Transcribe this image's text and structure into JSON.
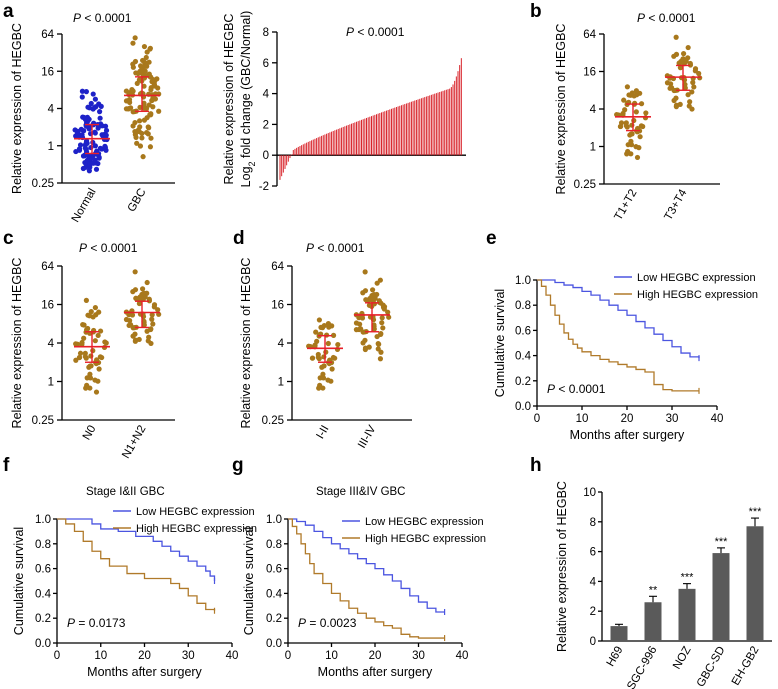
{
  "colors": {
    "blue": "#1e22c8",
    "gold": "#a8781c",
    "red": "#e8202a",
    "barred": "#d8232a",
    "bar_gray": "#5a5a5a",
    "km_blue": "#4b55e0",
    "km_brown": "#b07a2a"
  },
  "chart_data": [
    {
      "panel": "a",
      "type": "scatter",
      "subtype": "dot-plot",
      "p_text": {
        "p": "P",
        "rest": " < 0.0001"
      },
      "ylabel": "Relative expression of HEGBC",
      "yscale": "log2",
      "yticks": [
        "64",
        "16",
        "4",
        "1",
        "0.25"
      ],
      "ytick_values": [
        64,
        16,
        4,
        1,
        0.25
      ],
      "categories": [
        "Normal",
        "GBC"
      ],
      "series": [
        {
          "name": "Normal",
          "color": "blue",
          "n": 110,
          "median": 1.3,
          "q1": 0.75,
          "q3": 2.2,
          "min": 0.35,
          "max": 9
        },
        {
          "name": "GBC",
          "color": "gold",
          "n": 110,
          "median": 6.5,
          "q1": 3.6,
          "q3": 13,
          "min": 0.6,
          "max": 60
        }
      ]
    },
    {
      "panel": "a2",
      "type": "bar",
      "subtype": "waterfall",
      "p_text": {
        "p": "P",
        "rest": " < 0.0001"
      },
      "ylabel_line1": "Relative expression of HEGBC",
      "ylabel_line2": {
        "a": "Log",
        "sub": "2",
        "b": " fold change (GBC/Normal)"
      },
      "ylim": [
        -2,
        8
      ],
      "yticks": [
        "8",
        "6",
        "4",
        "2",
        "0",
        "-2"
      ],
      "ytick_values": [
        8,
        6,
        4,
        2,
        0,
        -2
      ],
      "n_bars": 110,
      "min_value": -1.6,
      "max_value": 6.3
    },
    {
      "panel": "b",
      "type": "scatter",
      "subtype": "dot-plot",
      "p_text": {
        "p": "P",
        "rest": " < 0.0001"
      },
      "ylabel": "Relative expression of HEGBC",
      "yscale": "log2",
      "yticks": [
        "64",
        "16",
        "4",
        "1",
        "0.25"
      ],
      "ytick_values": [
        64,
        16,
        4,
        1,
        0.25
      ],
      "categories": [
        "T1+T2",
        "T3+T4"
      ],
      "series": [
        {
          "name": "T1+T2",
          "color": "gold",
          "n": 50,
          "median": 3,
          "q1": 1.8,
          "q3": 4.8,
          "min": 0.5,
          "max": 10
        },
        {
          "name": "T3+T4",
          "color": "gold",
          "n": 50,
          "median": 13,
          "q1": 8,
          "q3": 20,
          "min": 2.3,
          "max": 60
        }
      ]
    },
    {
      "panel": "c",
      "type": "scatter",
      "subtype": "dot-plot",
      "p_text": {
        "p": "P",
        "rest": " < 0.0001"
      },
      "ylabel": "Relative expression of HEGBC",
      "yscale": "log2",
      "yticks": [
        "64",
        "16",
        "4",
        "1",
        "0.25"
      ],
      "ytick_values": [
        64,
        16,
        4,
        1,
        0.25
      ],
      "categories": [
        "N0",
        "N1+N2"
      ],
      "series": [
        {
          "name": "N0",
          "color": "gold",
          "n": 55,
          "median": 3.5,
          "q1": 2,
          "q3": 6,
          "min": 0.5,
          "max": 22
        },
        {
          "name": "N1+N2",
          "color": "gold",
          "n": 55,
          "median": 12,
          "q1": 7,
          "q3": 18,
          "min": 2.5,
          "max": 55
        }
      ]
    },
    {
      "panel": "d",
      "type": "scatter",
      "subtype": "dot-plot",
      "p_text": {
        "p": "P",
        "rest": " < 0.0001"
      },
      "ylabel": "Relative expression of HEGBC",
      "yscale": "log2",
      "yticks": [
        "64",
        "16",
        "4",
        "1",
        "0.25"
      ],
      "ytick_values": [
        64,
        16,
        4,
        1,
        0.25
      ],
      "categories": [
        "I-II",
        "III-IV"
      ],
      "series": [
        {
          "name": "I-II",
          "color": "gold",
          "n": 45,
          "median": 3.3,
          "q1": 2,
          "q3": 5.2,
          "min": 0.5,
          "max": 10
        },
        {
          "name": "III-IV",
          "color": "gold",
          "n": 65,
          "median": 11,
          "q1": 6,
          "q3": 17,
          "min": 1.6,
          "max": 55
        }
      ]
    },
    {
      "panel": "e",
      "type": "line",
      "subtype": "kaplan-meier",
      "ylabel": "Cumulative survival",
      "xlabel": "Months after surgery",
      "xlim": [
        0,
        40
      ],
      "ylim": [
        0,
        1
      ],
      "xticks": [
        "0",
        "10",
        "20",
        "30",
        "40"
      ],
      "xtick_values": [
        0,
        10,
        20,
        30,
        40
      ],
      "yticks": [
        "1.0",
        "0.8",
        "0.6",
        "0.4",
        "0.2",
        "0.0"
      ],
      "ytick_values": [
        1,
        0.8,
        0.6,
        0.4,
        0.2,
        0
      ],
      "p_text": {
        "p": "P",
        "rest": " < 0.0001"
      },
      "series": [
        {
          "name": "Low HEGBC expression",
          "color": "km_blue",
          "x": [
            0,
            2,
            4,
            6,
            8,
            10,
            12,
            14,
            16,
            18,
            20,
            22,
            24,
            26,
            28,
            30,
            32,
            34,
            36
          ],
          "y": [
            1.0,
            1.0,
            0.98,
            0.96,
            0.94,
            0.91,
            0.88,
            0.84,
            0.8,
            0.76,
            0.72,
            0.67,
            0.62,
            0.57,
            0.52,
            0.47,
            0.42,
            0.39,
            0.38
          ]
        },
        {
          "name": "High HEGBC expression",
          "color": "km_brown",
          "x": [
            0,
            1,
            2,
            3,
            4,
            5,
            6,
            7,
            8,
            9,
            10,
            12,
            14,
            16,
            18,
            20,
            22,
            24,
            26,
            28,
            30,
            36
          ],
          "y": [
            1.0,
            0.95,
            0.88,
            0.8,
            0.72,
            0.65,
            0.58,
            0.53,
            0.49,
            0.46,
            0.43,
            0.4,
            0.37,
            0.35,
            0.33,
            0.31,
            0.29,
            0.27,
            0.17,
            0.13,
            0.12,
            0.12
          ]
        }
      ]
    },
    {
      "panel": "f",
      "type": "line",
      "subtype": "kaplan-meier",
      "title": "Stage I&II GBC",
      "ylabel": "Cumulative survival",
      "xlabel": "Months after surgery",
      "xlim": [
        0,
        40
      ],
      "ylim": [
        0,
        1
      ],
      "xticks": [
        "0",
        "10",
        "20",
        "30",
        "40"
      ],
      "xtick_values": [
        0,
        10,
        20,
        30,
        40
      ],
      "yticks": [
        "1.0",
        "0.8",
        "0.6",
        "0.4",
        "0.2",
        "0.0"
      ],
      "ytick_values": [
        1,
        0.8,
        0.6,
        0.4,
        0.2,
        0
      ],
      "p_text": {
        "p": "P",
        "rest": " = 0.0173"
      },
      "series": [
        {
          "name": "Low HEGBC expression",
          "color": "km_blue",
          "x": [
            0,
            4,
            8,
            10,
            14,
            18,
            22,
            24,
            26,
            28,
            30,
            32,
            34,
            35,
            36
          ],
          "y": [
            1.0,
            1.0,
            0.96,
            0.92,
            0.9,
            0.86,
            0.82,
            0.78,
            0.74,
            0.7,
            0.66,
            0.62,
            0.58,
            0.54,
            0.5
          ]
        },
        {
          "name": "High HEGBC expression",
          "color": "km_brown",
          "x": [
            0,
            2,
            4,
            6,
            8,
            10,
            12,
            16,
            20,
            24,
            26,
            28,
            30,
            32,
            34,
            36
          ],
          "y": [
            1.0,
            0.96,
            0.9,
            0.82,
            0.74,
            0.68,
            0.62,
            0.56,
            0.52,
            0.52,
            0.48,
            0.44,
            0.38,
            0.32,
            0.27,
            0.26
          ]
        }
      ]
    },
    {
      "panel": "g",
      "type": "line",
      "subtype": "kaplan-meier",
      "title": "Stage III&IV GBC",
      "ylabel": "Cumulative survival",
      "xlabel": "Months after surgery",
      "xlim": [
        0,
        40
      ],
      "ylim": [
        0,
        1
      ],
      "xticks": [
        "0",
        "10",
        "20",
        "30",
        "40"
      ],
      "xtick_values": [
        0,
        10,
        20,
        30,
        40
      ],
      "yticks": [
        "1.0",
        "0.8",
        "0.6",
        "0.4",
        "0.2",
        "0.0"
      ],
      "ytick_values": [
        1,
        0.8,
        0.6,
        0.4,
        0.2,
        0
      ],
      "p_text": {
        "p": "P",
        "rest": " = 0.0023"
      },
      "series": [
        {
          "name": "Low HEGBC expression",
          "color": "km_blue",
          "x": [
            0,
            2,
            4,
            6,
            8,
            10,
            12,
            14,
            16,
            18,
            20,
            22,
            24,
            26,
            28,
            30,
            32,
            34,
            36
          ],
          "y": [
            1.0,
            0.98,
            0.95,
            0.9,
            0.85,
            0.8,
            0.76,
            0.72,
            0.68,
            0.64,
            0.6,
            0.55,
            0.5,
            0.44,
            0.38,
            0.33,
            0.28,
            0.25,
            0.25
          ]
        },
        {
          "name": "High HEGBC expression",
          "color": "km_brown",
          "x": [
            0,
            1,
            2,
            3,
            4,
            5,
            6,
            8,
            10,
            12,
            14,
            16,
            18,
            20,
            22,
            24,
            26,
            28,
            30,
            36
          ],
          "y": [
            1.0,
            0.94,
            0.88,
            0.8,
            0.72,
            0.64,
            0.56,
            0.48,
            0.4,
            0.34,
            0.28,
            0.24,
            0.2,
            0.17,
            0.14,
            0.12,
            0.07,
            0.05,
            0.04,
            0.04
          ]
        }
      ]
    },
    {
      "panel": "h",
      "type": "bar",
      "ylabel": "Relative expression of HEGBC",
      "ylim": [
        0,
        10
      ],
      "yticks": [
        "10",
        "8",
        "6",
        "4",
        "2",
        "0"
      ],
      "ytick_values": [
        10,
        8,
        6,
        4,
        2,
        0
      ],
      "categories": [
        "H69",
        "SGC-996",
        "NOZ",
        "GBC-SD",
        "EH-GB2"
      ],
      "values": [
        1.0,
        2.6,
        3.5,
        5.9,
        7.7
      ],
      "errors": [
        0.12,
        0.4,
        0.35,
        0.35,
        0.55
      ],
      "significance": [
        "",
        "**",
        "***",
        "***",
        "***"
      ]
    }
  ]
}
